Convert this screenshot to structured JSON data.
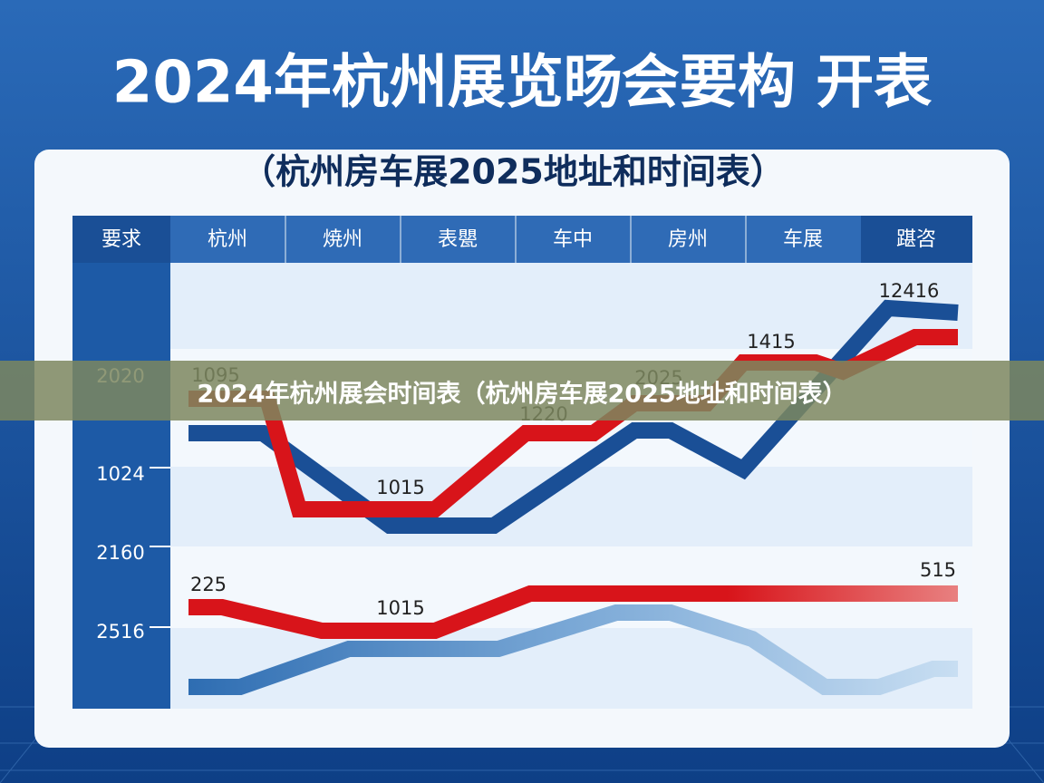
{
  "header": {
    "title": "2024年杭州展览旸会要构 开表",
    "subtitle": "（杭州房车展2025地址和时间表）"
  },
  "table": {
    "columns": [
      "要求",
      "杭州",
      "焼州",
      "表甖",
      "车中",
      "房州",
      "车展",
      "踸咨"
    ],
    "row_labels": [
      "2020",
      "1024",
      "2160",
      "2516"
    ]
  },
  "annotations": [
    "1095",
    "2025",
    "1220",
    "1415",
    "12416",
    "1015",
    "225",
    "1015",
    "515"
  ],
  "caption": "2024年杭州展会时间表（杭州房车展2025地址和时间表）"
}
